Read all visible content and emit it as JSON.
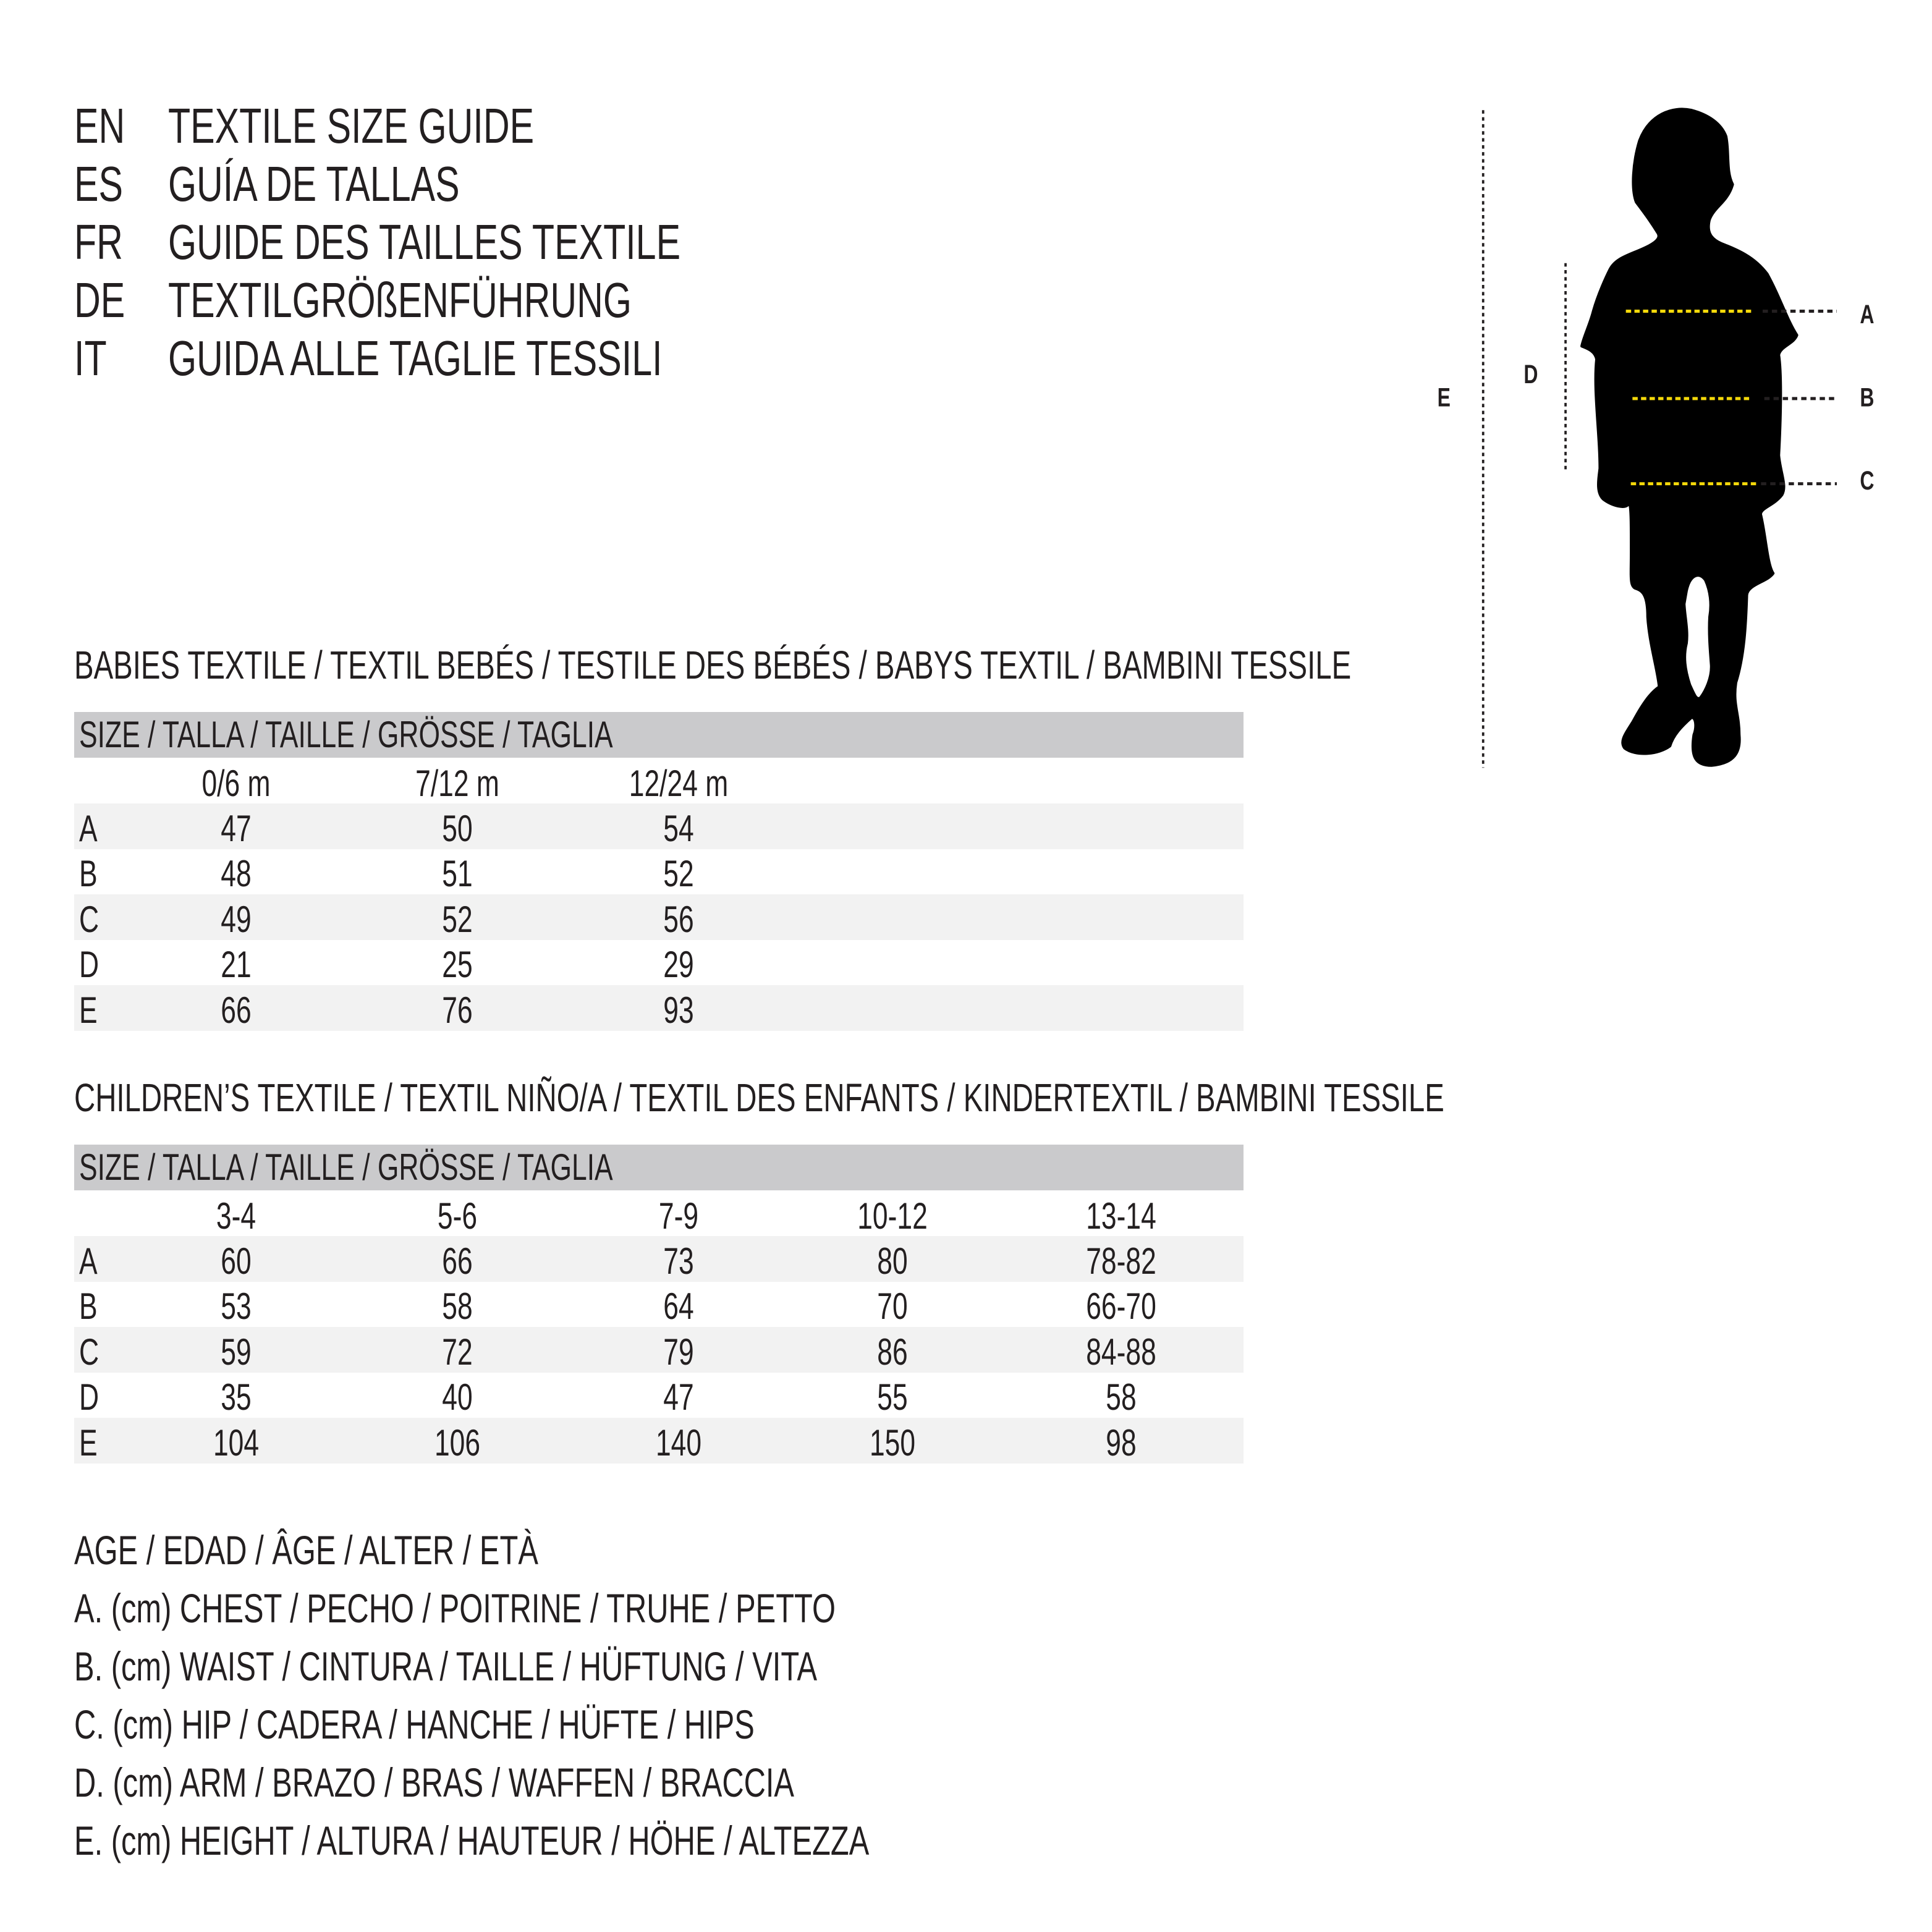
{
  "titles": [
    {
      "lang": "EN",
      "text": "TEXTILE SIZE GUIDE"
    },
    {
      "lang": "ES",
      "text": "GUÍA DE TALLAS"
    },
    {
      "lang": "FR",
      "text": "GUIDE DES TAILLES TEXTILE"
    },
    {
      "lang": "DE",
      "text": "TEXTILGRÖßENFÜHRUNG"
    },
    {
      "lang": "IT",
      "text": "GUIDA ALLE TAGLIE TESSILI"
    }
  ],
  "tables": [
    {
      "heading": "BABIES TEXTILE / TEXTIL BEBÉS / TESTILE DES BÉBÉS / BABYS TEXTIL / BAMBINI TESSILE",
      "size_label": "SIZE / TALLA / TAILLE / GRÖSSE / TAGLIA",
      "columns": [
        "0/6 m",
        "7/12 m",
        "12/24 m"
      ],
      "rows": [
        {
          "label": "A",
          "values": [
            "47",
            "50",
            "54"
          ]
        },
        {
          "label": "B",
          "values": [
            "48",
            "51",
            "52"
          ]
        },
        {
          "label": "C",
          "values": [
            "49",
            "52",
            "56"
          ]
        },
        {
          "label": "D",
          "values": [
            "21",
            "25",
            "29"
          ]
        },
        {
          "label": "E",
          "values": [
            "66",
            "76",
            "93"
          ]
        }
      ]
    },
    {
      "heading": "CHILDREN’S TEXTILE / TEXTIL NIÑO/A / TEXTIL DES ENFANTS / KINDERTEXTIL / BAMBINI TESSILE",
      "size_label": "SIZE / TALLA / TAILLE / GRÖSSE / TAGLIA",
      "columns": [
        "3-4",
        "5-6",
        "7-9",
        "10-12",
        "13-14"
      ],
      "rows": [
        {
          "label": "A",
          "values": [
            "60",
            "66",
            "73",
            "80",
            "78-82"
          ]
        },
        {
          "label": "B",
          "values": [
            "53",
            "58",
            "64",
            "70",
            "66-70"
          ]
        },
        {
          "label": "C",
          "values": [
            "59",
            "72",
            "79",
            "86",
            "84-88"
          ]
        },
        {
          "label": "D",
          "values": [
            "35",
            "40",
            "47",
            "55",
            "58"
          ]
        },
        {
          "label": "E",
          "values": [
            "104",
            "106",
            "140",
            "150",
            "98"
          ]
        }
      ]
    }
  ],
  "legend": [
    "AGE / EDAD / ÂGE / ALTER / ETÀ",
    "A. (cm) CHEST / PECHO / POITRINE / TRUHE / PETTO",
    "B. (cm) WAIST / CINTURA / TAILLE / HÜFTUNG / VITA",
    "C. (cm) HIP / CADERA / HANCHE / HÜFTE / HIPS",
    "D. (cm) ARM / BRAZO / BRAS / WAFFEN / BRACCIA",
    "E. (cm) HEIGHT / ALTURA / HAUTEUR / HÖHE / ALTEZZA"
  ],
  "figure": {
    "labels": {
      "A": "A",
      "B": "B",
      "C": "C",
      "D": "D",
      "E": "E"
    },
    "colors": {
      "silhouette": "#000000",
      "measure_line": "#f5d90a",
      "guide_line": "#231f20",
      "header_band": "#cacacc",
      "row_shade": "#f2f2f2"
    }
  }
}
